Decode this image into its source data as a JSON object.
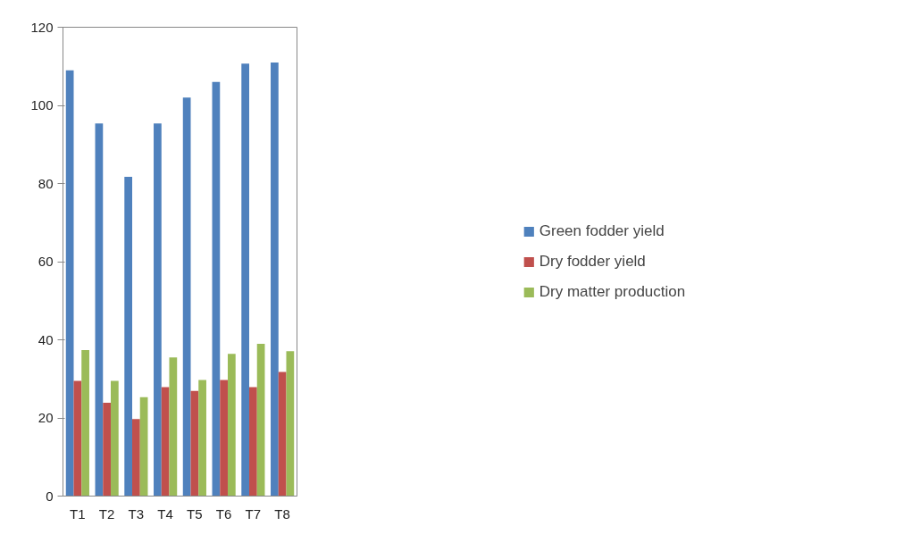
{
  "chart_data": {
    "type": "bar",
    "categories": [
      "T1",
      "T2",
      "T3",
      "T4",
      "T5",
      "T6",
      "T7",
      "T8"
    ],
    "series": [
      {
        "name": "Green fodder yield",
        "color": "#4f81bd",
        "values": [
          109,
          95.4,
          81.7,
          95.4,
          102,
          106,
          110.7,
          111
        ]
      },
      {
        "name": "Dry fodder yield",
        "color": "#c0504d",
        "values": [
          29.5,
          23.9,
          19.7,
          27.9,
          26.9,
          29.7,
          27.9,
          31.8
        ]
      },
      {
        "name": "Dry matter production",
        "color": "#9bbb59",
        "values": [
          37.4,
          29.5,
          25.3,
          35.5,
          29.7,
          36.4,
          39,
          37.1
        ]
      }
    ],
    "ylim": [
      0,
      120
    ],
    "yticks": [
      0,
      20,
      40,
      60,
      80,
      100,
      120
    ],
    "grid": false,
    "legend": "right"
  }
}
